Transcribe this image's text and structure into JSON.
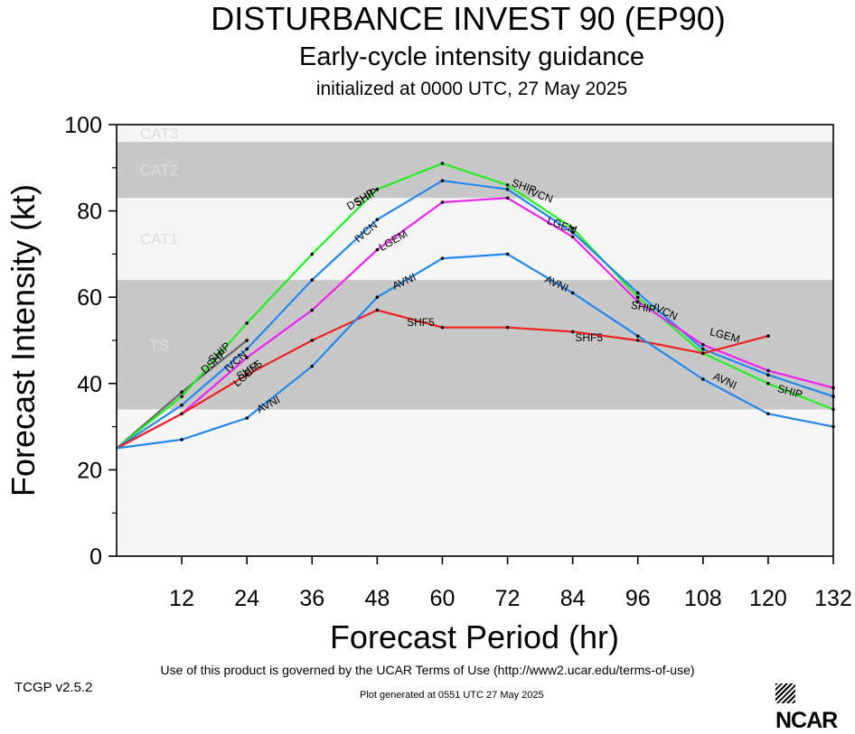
{
  "header": {
    "title": "DISTURBANCE INVEST 90 (EP90)",
    "subtitle": "Early-cycle intensity guidance",
    "init_text": "initialized at 0000 UTC, 27 May 2025"
  },
  "footer": {
    "terms": "Use of this product is governed by the UCAR Terms of Use (http://www2.ucar.edu/terms-of-use)",
    "version": "TCGP v2.5.2",
    "generated": "Plot generated at 0551 UTC   27 May 2025",
    "logo_text": "NCAR"
  },
  "chart_data": {
    "type": "line",
    "xlabel": "Forecast Period (hr)",
    "ylabel": "Forecast Intensity (kt)",
    "xlim": [
      0,
      132
    ],
    "ylim": [
      0,
      100
    ],
    "xticks": [
      12,
      24,
      36,
      48,
      60,
      72,
      84,
      96,
      108,
      120,
      132
    ],
    "yticks": [
      0,
      20,
      40,
      60,
      80,
      100
    ],
    "grid": false,
    "bands": [
      {
        "label": "TS",
        "from": 34,
        "to": 64,
        "color": "#c8c8c8"
      },
      {
        "label": "CAT1",
        "from": 64,
        "to": 83,
        "color": "#f6f6f6"
      },
      {
        "label": "CAT2",
        "from": 83,
        "to": 96,
        "color": "#c8c8c8"
      },
      {
        "label": "CAT3",
        "from": 96,
        "to": 100,
        "color": "#f6f6f6"
      },
      {
        "label": "",
        "from": 0,
        "to": 34,
        "color": "#f6f6f6"
      }
    ],
    "series": [
      {
        "name": "DSHP",
        "color": "#666666",
        "x": [
          0,
          12,
          24
        ],
        "y": [
          25,
          38,
          50
        ],
        "tags": [
          {
            "x": 18,
            "y": 45,
            "angle": -42
          },
          {
            "x": 45,
            "y": 82.5,
            "angle": -32
          }
        ]
      },
      {
        "name": "SHIP",
        "color": "#22ee22",
        "x": [
          0,
          12,
          24,
          36,
          48,
          60,
          72,
          84,
          96,
          108,
          120,
          132
        ],
        "y": [
          25,
          37,
          54,
          70,
          85,
          91,
          86,
          76,
          60,
          47,
          40,
          34
        ],
        "tags": [
          {
            "x": 19,
            "y": 47,
            "angle": -42
          },
          {
            "x": 46,
            "y": 83,
            "angle": -32
          },
          {
            "x": 75,
            "y": 85.5,
            "angle": 20
          },
          {
            "x": 97,
            "y": 57.5,
            "angle": 12
          },
          {
            "x": 124,
            "y": 38,
            "angle": 15
          }
        ]
      },
      {
        "name": "IVCN",
        "color": "#2288ee",
        "x": [
          0,
          12,
          24,
          36,
          48,
          60,
          72,
          84,
          96,
          108,
          120,
          132
        ],
        "y": [
          25,
          35,
          48,
          64,
          78,
          87,
          85,
          75,
          61,
          48,
          42,
          37
        ],
        "tags": [
          {
            "x": 22,
            "y": 45,
            "angle": -42
          },
          {
            "x": 46,
            "y": 75,
            "angle": -40
          },
          {
            "x": 78,
            "y": 83.5,
            "angle": 20
          },
          {
            "x": 101,
            "y": 56.5,
            "angle": 25
          }
        ]
      },
      {
        "name": "LGEM",
        "color": "#ee22ee",
        "x": [
          0,
          12,
          24,
          36,
          48,
          60,
          72,
          84,
          96,
          108,
          120,
          132
        ],
        "y": [
          25,
          33,
          46,
          57,
          71,
          82,
          83,
          74,
          59,
          49,
          43,
          39
        ],
        "tags": [
          {
            "x": 24,
            "y": 42,
            "angle": -42
          },
          {
            "x": 51,
            "y": 73,
            "angle": -30
          },
          {
            "x": 82,
            "y": 76.5,
            "angle": 20
          },
          {
            "x": 112,
            "y": 51,
            "angle": 15
          }
        ]
      },
      {
        "name": "SHF5",
        "color": "#ee2222",
        "x": [
          0,
          12,
          24,
          36,
          48,
          60,
          72,
          84,
          96,
          108,
          120
        ],
        "y": [
          25,
          33,
          42,
          50,
          57,
          53,
          53,
          52,
          50,
          47,
          51
        ],
        "tags": [
          {
            "x": 24.5,
            "y": 43,
            "angle": -32
          },
          {
            "x": 56,
            "y": 54,
            "angle": 0
          },
          {
            "x": 87,
            "y": 50.5,
            "angle": 0
          }
        ]
      },
      {
        "name": "AVNI",
        "color": "#2288ee",
        "x": [
          0,
          12,
          24,
          36,
          48,
          60,
          72,
          84,
          96,
          108,
          120,
          132
        ],
        "y": [
          25,
          27,
          32,
          44,
          60,
          69,
          70,
          61,
          51,
          41,
          33,
          30
        ],
        "tags": [
          {
            "x": 28,
            "y": 35,
            "angle": -28
          },
          {
            "x": 53,
            "y": 63.5,
            "angle": -25
          },
          {
            "x": 81,
            "y": 63,
            "angle": 25
          },
          {
            "x": 112,
            "y": 40.5,
            "angle": 25
          }
        ]
      }
    ]
  }
}
